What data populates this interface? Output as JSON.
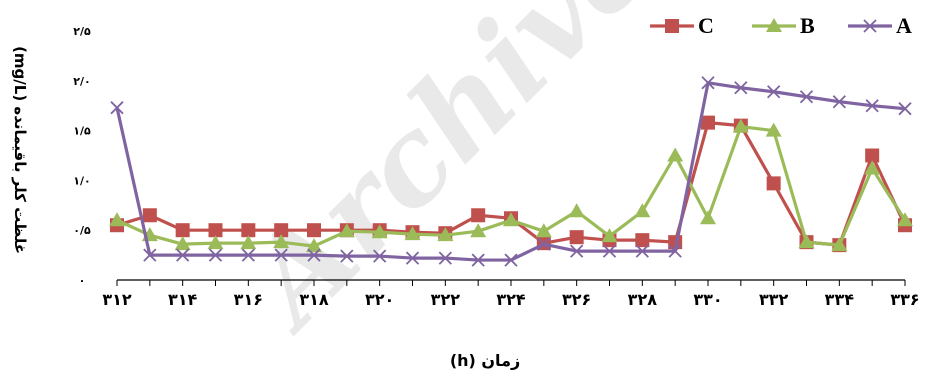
{
  "chart_data": {
    "type": "line",
    "xlabel": "زمان (h)",
    "ylabel": "غلظت کلر باقیمانده (mg/L)",
    "x": [
      312,
      313,
      314,
      315,
      316,
      317,
      318,
      319,
      320,
      321,
      322,
      323,
      324,
      325,
      326,
      327,
      328,
      329,
      330,
      331,
      332,
      333,
      334,
      335,
      336
    ],
    "xlim": [
      312,
      336
    ],
    "ylim": [
      0,
      2.5
    ],
    "x_tick_values": [
      312,
      314,
      316,
      318,
      320,
      322,
      324,
      326,
      328,
      330,
      332,
      334,
      336
    ],
    "x_tick_labels": [
      "۳۱۲",
      "۳۱۴",
      "۳۱۶",
      "۳۱۸",
      "۳۲۰",
      "۳۲۲",
      "۳۲۴",
      "۳۲۶",
      "۳۲۸",
      "۳۳۰",
      "۳۳۲",
      "۳۳۴",
      "۳۳۶"
    ],
    "y_tick_values": [
      0,
      0.5,
      1.0,
      1.5,
      2.0,
      2.5
    ],
    "y_tick_labels": [
      "۰",
      "۰/۵",
      "۱/۰",
      "۱/۵",
      "۲/۰",
      "۲/۵"
    ],
    "grid": false,
    "legend_position": "top-right",
    "series": [
      {
        "name": "C",
        "color": "#C0504D",
        "marker": "square",
        "values": [
          0.55,
          0.65,
          0.5,
          0.5,
          0.5,
          0.5,
          0.5,
          0.5,
          0.5,
          0.48,
          0.47,
          0.65,
          0.62,
          0.37,
          0.43,
          0.4,
          0.4,
          0.38,
          1.58,
          1.55,
          0.97,
          0.38,
          0.35,
          1.25,
          0.55
        ]
      },
      {
        "name": "B",
        "color": "#9BBB59",
        "marker": "triangle",
        "values": [
          0.6,
          0.45,
          0.36,
          0.37,
          0.37,
          0.38,
          0.34,
          0.49,
          0.48,
          0.46,
          0.45,
          0.49,
          0.6,
          0.49,
          0.69,
          0.44,
          0.69,
          1.25,
          0.62,
          1.54,
          1.5,
          0.38,
          0.35,
          1.12,
          0.6
        ]
      },
      {
        "name": "A",
        "color": "#8064A2",
        "marker": "x",
        "values": [
          1.73,
          0.25,
          0.25,
          0.25,
          0.25,
          0.25,
          0.25,
          0.24,
          0.24,
          0.22,
          0.22,
          0.2,
          0.2,
          0.36,
          0.29,
          0.29,
          0.29,
          0.29,
          1.98,
          1.93,
          1.89,
          1.84,
          1.79,
          1.75,
          1.72
        ]
      }
    ]
  },
  "watermark": "Archive of SID"
}
